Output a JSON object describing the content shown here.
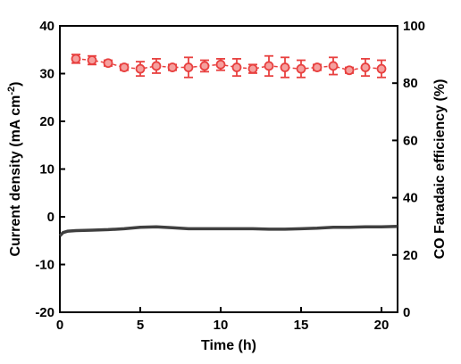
{
  "chart_data": {
    "type": "line",
    "xlabel": "Time (h)",
    "x_ticks": [
      0,
      5,
      10,
      15,
      20
    ],
    "xlim": [
      0,
      21
    ],
    "y_left": {
      "label_main": "Current density (mA cm",
      "label_sup": "-2",
      "label_close": ")",
      "ticks": [
        40,
        30,
        20,
        10,
        0,
        -10,
        -20
      ],
      "lim": [
        -20,
        40
      ]
    },
    "y_right": {
      "label": "CO Faradaic efficiency (%)",
      "ticks": [
        100,
        80,
        60,
        40,
        20,
        0
      ],
      "lim": [
        0,
        100
      ]
    },
    "series": [
      {
        "axis": "left",
        "style": "line",
        "color": "#404040",
        "x": [
          0,
          0.2,
          0.5,
          1,
          2,
          3,
          4,
          5,
          6,
          7,
          8,
          9,
          10,
          11,
          12,
          13,
          14,
          15,
          16,
          17,
          18,
          19,
          20,
          21
        ],
        "y": [
          -4.0,
          -3.3,
          -3.0,
          -2.9,
          -2.8,
          -2.7,
          -2.5,
          -2.2,
          -2.1,
          -2.3,
          -2.5,
          -2.5,
          -2.5,
          -2.5,
          -2.5,
          -2.6,
          -2.6,
          -2.5,
          -2.4,
          -2.2,
          -2.2,
          -2.1,
          -2.1,
          -2.0
        ]
      },
      {
        "axis": "right",
        "style": "line-markers-errorbars",
        "color": "#e8403f",
        "x": [
          1,
          2,
          3,
          4,
          5,
          6,
          7,
          8,
          9,
          10,
          11,
          12,
          13,
          14,
          15,
          16,
          17,
          18,
          19,
          20
        ],
        "y": [
          88.5,
          88.0,
          87.0,
          85.5,
          85.0,
          86.0,
          85.5,
          85.5,
          86.0,
          86.5,
          85.5,
          85.0,
          86.0,
          85.5,
          85.0,
          85.5,
          86.0,
          84.5,
          85.5,
          85.0
        ],
        "err": [
          1.5,
          1.5,
          1.0,
          1.0,
          2.5,
          2.5,
          1.0,
          3.5,
          2.0,
          2.0,
          3.0,
          1.5,
          3.5,
          3.5,
          3.0,
          1.0,
          3.0,
          1.0,
          3.0,
          3.0
        ]
      }
    ]
  }
}
